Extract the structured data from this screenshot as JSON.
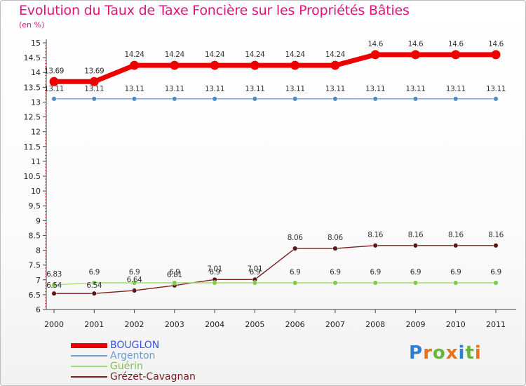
{
  "title": "Evolution du Taux de Taxe Foncière sur les Propriétés Bâties",
  "unit_label": "(en %)",
  "logo": {
    "letters": [
      "P",
      "r",
      "o",
      "x",
      "i",
      "t",
      "i"
    ],
    "colors": [
      "#2f7fd0",
      "#e8731a",
      "#67b83a",
      "#e8731a",
      "#2f7fd0",
      "#67b83a",
      "#e8731a"
    ]
  },
  "chart_data": {
    "type": "line",
    "title": "Evolution du Taux de Taxe Foncière sur les Propriétés Bâties",
    "ylabel": "(en %)",
    "xlabel": "",
    "x": [
      "2000",
      "2001",
      "2002",
      "2003",
      "2004",
      "2005",
      "2006",
      "2007",
      "2008",
      "2009",
      "2010",
      "2011"
    ],
    "ylim": [
      6,
      15
    ],
    "yticks": [
      "6",
      "6.5",
      "7",
      "7.5",
      "8",
      "8.5",
      "9",
      "9.5",
      "10",
      "10.5",
      "11",
      "11.5",
      "12",
      "12.5",
      "13",
      "13.5",
      "14",
      "14.5",
      "15"
    ],
    "legend_position": "bottom-left",
    "series": [
      {
        "name": "BOUGLON",
        "color": "#ee0000",
        "legend_color": "#3355dd",
        "values": [
          13.69,
          13.69,
          14.24,
          14.24,
          14.24,
          14.24,
          14.24,
          14.24,
          14.6,
          14.6,
          14.6,
          14.6
        ],
        "labels": [
          "13.69",
          "13.69",
          "14.24",
          "14.24",
          "14.24",
          "14.24",
          "14.24",
          "14.24",
          "14.6",
          "14.6",
          "14.6",
          "14.6"
        ]
      },
      {
        "name": "Argenton",
        "color": "#6fa1d2",
        "marker": "#4f8ac4",
        "values": [
          13.11,
          13.11,
          13.11,
          13.11,
          13.11,
          13.11,
          13.11,
          13.11,
          13.11,
          13.11,
          13.11,
          13.11
        ],
        "labels": [
          "13.11",
          "13.11",
          "13.11",
          "13.11",
          "13.11",
          "13.11",
          "13.11",
          "13.11",
          "13.11",
          "13.11",
          "13.11",
          "13.11"
        ]
      },
      {
        "name": "Guérin",
        "color": "#9fdc6f",
        "marker": "#7fcc4a",
        "values": [
          6.83,
          6.9,
          6.9,
          6.9,
          6.9,
          6.9,
          6.9,
          6.9,
          6.9,
          6.9,
          6.9,
          6.9
        ],
        "labels": [
          "6.83",
          "6.9",
          "6.9",
          "6.9",
          "6.9",
          "6.9",
          "6.9",
          "6.9",
          "6.9",
          "6.9",
          "6.9",
          "6.9"
        ]
      },
      {
        "name": "Grézet-Cavagnan",
        "color": "#7a1e22",
        "marker": "#5e1518",
        "values": [
          6.54,
          6.54,
          6.64,
          6.81,
          7.01,
          7.01,
          8.06,
          8.06,
          8.16,
          8.16,
          8.16,
          8.16
        ],
        "labels": [
          "6.54",
          "6.54",
          "6.64",
          "6.81",
          "7.01",
          "7.01",
          "8.06",
          "8.06",
          "8.16",
          "8.16",
          "8.16",
          "8.16"
        ]
      }
    ]
  }
}
